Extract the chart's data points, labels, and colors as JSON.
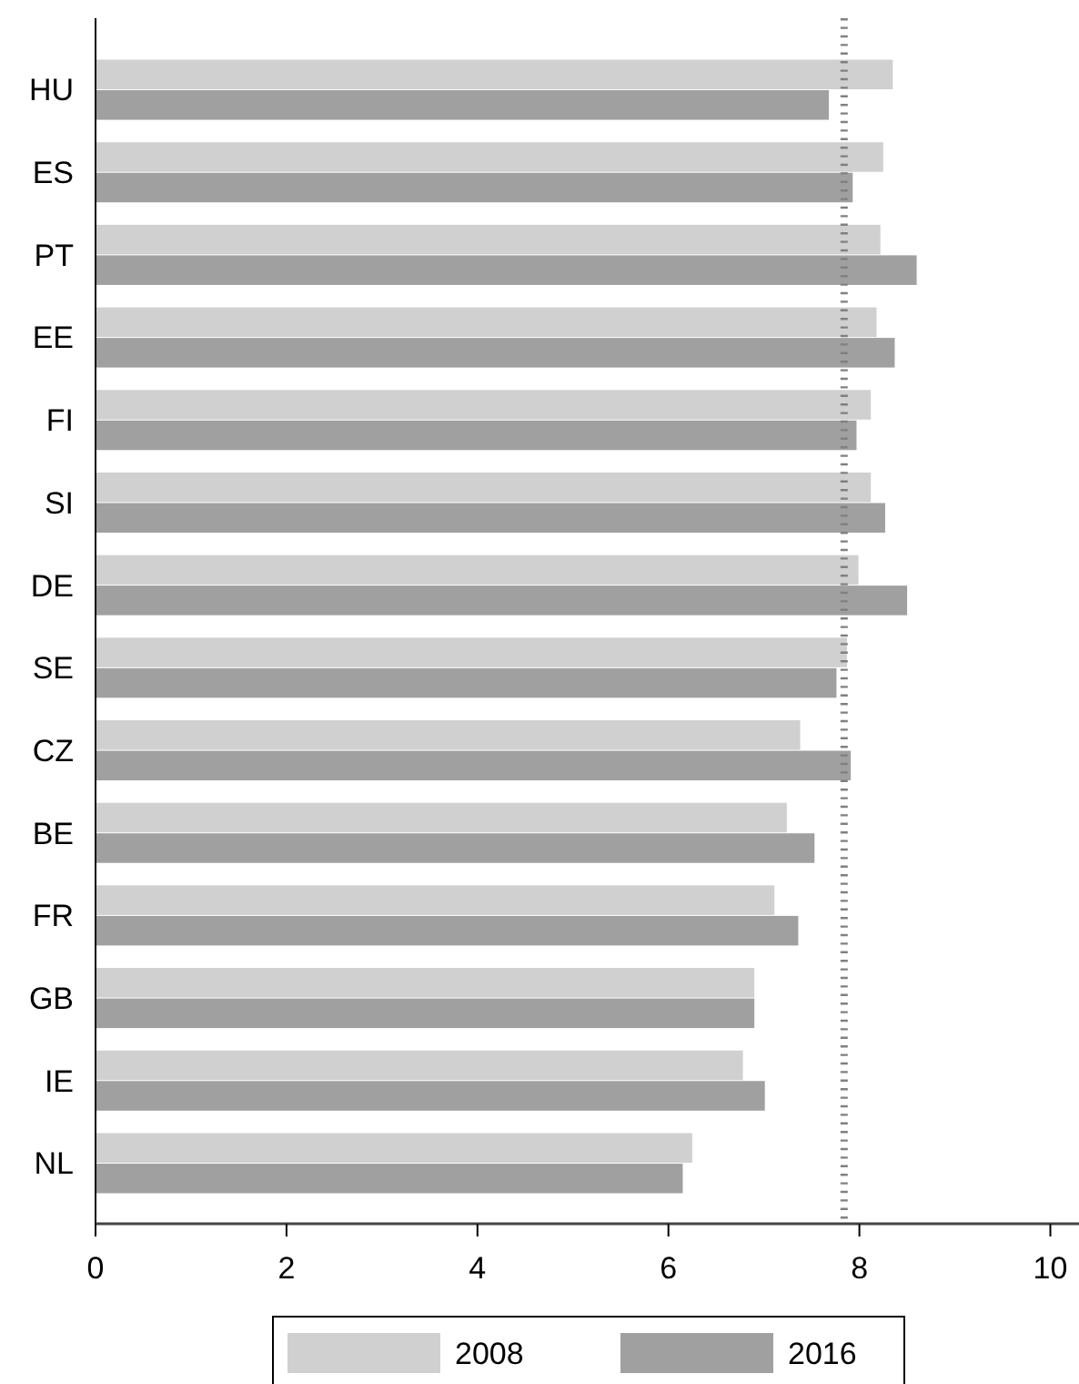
{
  "chart_data": {
    "type": "bar",
    "orientation": "horizontal",
    "categories": [
      "HU",
      "ES",
      "PT",
      "EE",
      "FI",
      "SI",
      "DE",
      "SE",
      "CZ",
      "BE",
      "FR",
      "GB",
      "IE",
      "NL"
    ],
    "series": [
      {
        "name": "2008",
        "color": "#d0d0d0",
        "values": [
          8.35,
          8.25,
          8.22,
          8.18,
          8.12,
          8.12,
          7.99,
          7.87,
          7.38,
          7.24,
          7.11,
          6.9,
          6.78,
          6.25
        ]
      },
      {
        "name": "2016",
        "color": "#a0a0a0",
        "values": [
          7.68,
          7.93,
          8.6,
          8.37,
          7.97,
          8.27,
          8.5,
          7.76,
          7.91,
          7.53,
          7.36,
          6.9,
          7.01,
          6.15
        ]
      }
    ],
    "xlim": [
      0,
      10.3
    ],
    "xticks": [
      0,
      2,
      4,
      6,
      8,
      10
    ],
    "grid": false,
    "legend": "bottom",
    "ref_lines": [
      {
        "axis": "x",
        "value": 7.84,
        "line_style": "dotted",
        "color": "#808080"
      }
    ]
  }
}
